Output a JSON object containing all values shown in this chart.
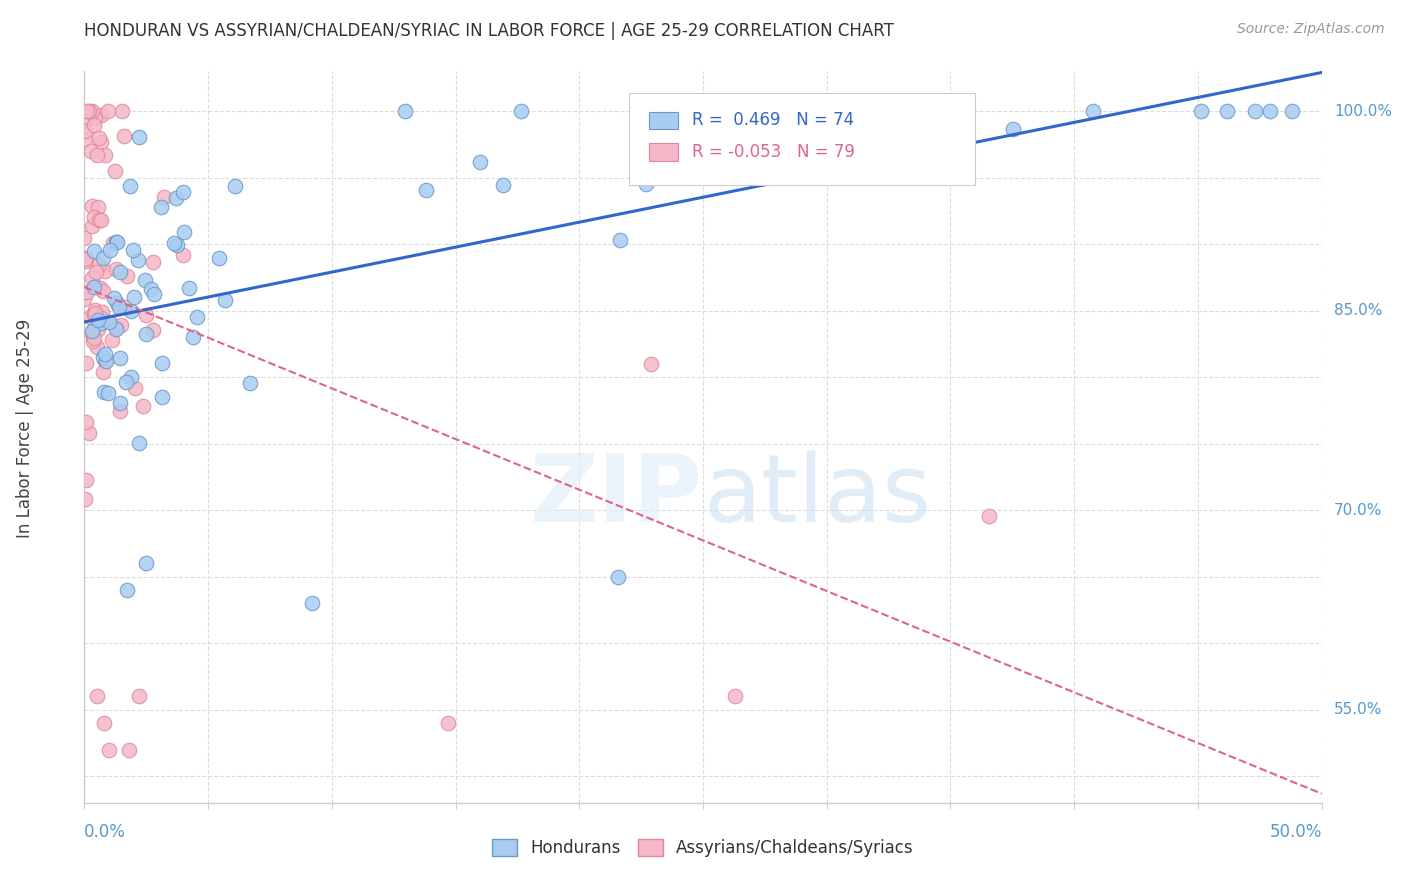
{
  "title": "HONDURAN VS ASSYRIAN/CHALDEAN/SYRIAC IN LABOR FORCE | AGE 25-29 CORRELATION CHART",
  "source": "Source: ZipAtlas.com",
  "ylabel": "In Labor Force | Age 25-29",
  "xlim": [
    0.0,
    0.5
  ],
  "ylim": [
    0.48,
    1.03
  ],
  "blue_R": 0.469,
  "blue_N": 74,
  "pink_R": -0.053,
  "pink_N": 79,
  "blue_color": "#a8ccf0",
  "blue_edge": "#6699cc",
  "pink_color": "#f5b8c8",
  "pink_edge": "#e08898",
  "blue_line_color": "#3366cc",
  "pink_line_color": "#dd6688",
  "legend_label_blue": "Hondurans",
  "legend_label_pink": "Assyrians/Chaldeans/Syriacs",
  "title_color": "#333333",
  "axis_color": "#5599cc",
  "grid_color": "#dddddd",
  "ytick_vals": [
    0.5,
    0.55,
    0.6,
    0.65,
    0.7,
    0.75,
    0.8,
    0.85,
    0.9,
    0.95,
    1.0
  ],
  "ytick_show": [
    0.55,
    0.7,
    0.85,
    1.0
  ],
  "ytick_labels_show": [
    "55.0%",
    "70.0%",
    "85.0%",
    "100.0%"
  ]
}
